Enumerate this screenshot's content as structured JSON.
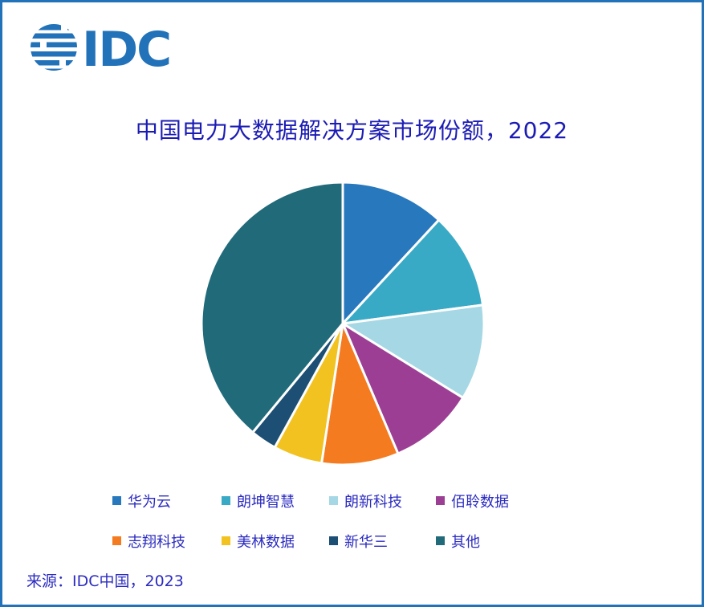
{
  "window": {
    "border_color": "#2272B9",
    "background_color": "#FFFFFF"
  },
  "logo": {
    "text": "IDC",
    "color": "#2272B9",
    "icon": "striped-globe-icon"
  },
  "title": {
    "text": "中国电力大数据解决方案市场份额，2022",
    "color": "#1C1CB4"
  },
  "source": {
    "text": "来源：IDC中国，2023"
  },
  "chart_data": {
    "type": "pie",
    "title": "中国电力大数据解决方案市场份额，2022",
    "unit": "%",
    "start_angle_deg": 0,
    "direction": "clockwise",
    "legend_position": "bottom",
    "data_labels_shown": false,
    "categories": [
      "华为云",
      "朗坤智慧",
      "朗新科技",
      "佰聆数据",
      "志翔科技",
      "美林数据",
      "新华三",
      "其他"
    ],
    "values": [
      11.9,
      11.0,
      10.9,
      9.8,
      8.8,
      5.6,
      3.0,
      39.0
    ],
    "colors": [
      "#2878BE",
      "#39AAC5",
      "#A5D8E4",
      "#9C3F94",
      "#F47B20",
      "#F2C220",
      "#1D4E73",
      "#216A7A"
    ],
    "slice_gap_color": "#FFFFFF"
  }
}
